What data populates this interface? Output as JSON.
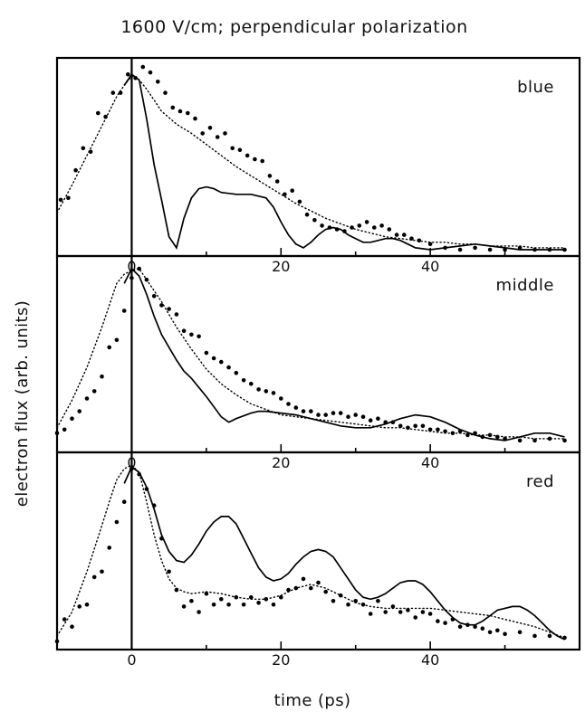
{
  "chart_data": {
    "type": "line",
    "title": "1600 V/cm; perpendicular polarization",
    "xlabel": "time (ps)",
    "ylabel": "electron flux (arb. units)",
    "xlim": [
      -10,
      60
    ],
    "x_ticks": [
      0,
      20,
      40
    ],
    "tick_labels": [
      "0",
      "20",
      "40"
    ],
    "grid": false,
    "legend": "none",
    "panels": [
      {
        "name": "blue",
        "ylim": [
          0,
          1.0
        ],
        "series": [
          {
            "style": "dots",
            "x": [
              -9.5,
              -8.5,
              -7.5,
              -6.5,
              -5.5,
              -4.5,
              -3.5,
              -2.5,
              -1.5,
              -0.5,
              0.5,
              1.5,
              2.5,
              3.5,
              4.5,
              5.5,
              6.5,
              7.5,
              8.5,
              9.5,
              10.5,
              11.5,
              12.5,
              13.5,
              14.5,
              15.5,
              16.5,
              17.5,
              18.5,
              19.5,
              20.5,
              21.5,
              22.5,
              23.5,
              24.5,
              25.5,
              26.5,
              27.5,
              28.5,
              29.5,
              30.5,
              31.5,
              32.5,
              33.5,
              34.5,
              35.5,
              36.5,
              37.5,
              38.5,
              40,
              42,
              44,
              46,
              48,
              50,
              52,
              54,
              56,
              58
            ],
            "y": [
              0.28,
              0.29,
              0.44,
              0.56,
              0.54,
              0.75,
              0.73,
              0.86,
              0.86,
              0.96,
              0.94,
              1.0,
              0.97,
              0.92,
              0.86,
              0.78,
              0.76,
              0.75,
              0.72,
              0.64,
              0.67,
              0.62,
              0.64,
              0.56,
              0.55,
              0.52,
              0.5,
              0.49,
              0.41,
              0.38,
              0.31,
              0.33,
              0.27,
              0.2,
              0.17,
              0.14,
              0.13,
              0.12,
              0.11,
              0.13,
              0.14,
              0.16,
              0.13,
              0.14,
              0.12,
              0.09,
              0.09,
              0.07,
              0.06,
              0.04,
              0.02,
              0.01,
              0.02,
              0.01,
              0.01,
              0.02,
              0.01,
              0.01,
              0.01
            ]
          },
          {
            "style": "solid",
            "x": [
              -1,
              0,
              1,
              2,
              3,
              4,
              5,
              6,
              7,
              8,
              9,
              10,
              11,
              12,
              14,
              16,
              18,
              19,
              20,
              21,
              22,
              23,
              24,
              25,
              26,
              27,
              28,
              29,
              30,
              31,
              32,
              33,
              34,
              35,
              36,
              37,
              38,
              40,
              42,
              44,
              46,
              48,
              50,
              52,
              54,
              56,
              58
            ],
            "y": [
              0.9,
              0.96,
              0.93,
              0.72,
              0.47,
              0.28,
              0.08,
              0.02,
              0.18,
              0.29,
              0.34,
              0.35,
              0.34,
              0.32,
              0.31,
              0.31,
              0.29,
              0.24,
              0.16,
              0.09,
              0.04,
              0.02,
              0.05,
              0.09,
              0.12,
              0.13,
              0.12,
              0.09,
              0.07,
              0.05,
              0.05,
              0.06,
              0.07,
              0.07,
              0.06,
              0.04,
              0.02,
              0.01,
              0.02,
              0.03,
              0.04,
              0.03,
              0.02,
              0.01,
              0.01,
              0.01,
              0.01
            ]
          },
          {
            "style": "dotted",
            "x": [
              -10,
              -8,
              -6,
              -4,
              -3,
              -2,
              -1,
              0,
              1,
              2,
              3,
              4,
              6,
              8,
              10,
              12,
              14,
              16,
              18,
              20,
              22,
              24,
              26,
              28,
              30,
              32,
              34,
              36,
              38,
              40,
              42,
              44,
              46,
              48,
              50,
              52,
              54,
              56,
              58
            ],
            "y": [
              0.21,
              0.36,
              0.52,
              0.68,
              0.76,
              0.84,
              0.9,
              0.95,
              0.93,
              0.88,
              0.82,
              0.76,
              0.69,
              0.64,
              0.58,
              0.52,
              0.46,
              0.41,
              0.36,
              0.31,
              0.26,
              0.22,
              0.18,
              0.15,
              0.12,
              0.1,
              0.08,
              0.07,
              0.06,
              0.05,
              0.05,
              0.04,
              0.04,
              0.03,
              0.03,
              0.03,
              0.02,
              0.02,
              0.02
            ]
          }
        ]
      },
      {
        "name": "middle",
        "ylim": [
          0,
          1.0
        ],
        "series": [
          {
            "style": "dots",
            "x": [
              -10,
              -9,
              -8,
              -7,
              -6,
              -5,
              -4,
              -3,
              -2,
              -1,
              0,
              1,
              2,
              3,
              4,
              5,
              6,
              7,
              8,
              9,
              10,
              11,
              12,
              13,
              14,
              15,
              16,
              17,
              18,
              19,
              20,
              21,
              22,
              23,
              24,
              25,
              26,
              27,
              28,
              29,
              30,
              31,
              32,
              33,
              34,
              35,
              36,
              37,
              38,
              39,
              40,
              41,
              42,
              43,
              44,
              45,
              46,
              47,
              48,
              49,
              50,
              52,
              54,
              56,
              58
            ],
            "y": [
              0.08,
              0.1,
              0.16,
              0.2,
              0.27,
              0.31,
              0.39,
              0.55,
              0.59,
              0.75,
              0.93,
              0.98,
              0.92,
              0.83,
              0.78,
              0.76,
              0.73,
              0.64,
              0.62,
              0.61,
              0.52,
              0.49,
              0.47,
              0.44,
              0.41,
              0.37,
              0.35,
              0.32,
              0.31,
              0.3,
              0.27,
              0.24,
              0.22,
              0.2,
              0.2,
              0.18,
              0.18,
              0.19,
              0.19,
              0.17,
              0.18,
              0.17,
              0.15,
              0.16,
              0.14,
              0.14,
              0.12,
              0.11,
              0.12,
              0.12,
              0.1,
              0.1,
              0.09,
              0.08,
              0.09,
              0.07,
              0.08,
              0.06,
              0.07,
              0.06,
              0.05,
              0.04,
              0.04,
              0.05,
              0.04
            ]
          },
          {
            "style": "solid",
            "x": [
              -1,
              0,
              1,
              2,
              3,
              4,
              5,
              6,
              7,
              8,
              10,
              12,
              13,
              14,
              16,
              17,
              18,
              20,
              22,
              24,
              26,
              28,
              30,
              32,
              34,
              36,
              38,
              40,
              42,
              44,
              46,
              48,
              50,
              52,
              54,
              56,
              58
            ],
            "y": [
              0.9,
              0.98,
              0.94,
              0.84,
              0.72,
              0.62,
              0.55,
              0.48,
              0.42,
              0.38,
              0.28,
              0.17,
              0.14,
              0.16,
              0.19,
              0.2,
              0.2,
              0.19,
              0.18,
              0.16,
              0.14,
              0.12,
              0.11,
              0.11,
              0.13,
              0.16,
              0.18,
              0.17,
              0.14,
              0.1,
              0.07,
              0.05,
              0.04,
              0.06,
              0.08,
              0.08,
              0.06
            ]
          },
          {
            "style": "dotted",
            "x": [
              -10,
              -8,
              -6,
              -4,
              -3,
              -2,
              -1,
              0,
              1,
              2,
              4,
              6,
              8,
              10,
              12,
              14,
              16,
              18,
              20,
              22,
              24,
              26,
              28,
              30,
              32,
              34,
              36,
              38,
              40,
              42,
              44,
              46,
              48,
              50,
              52,
              54,
              56,
              58
            ],
            "y": [
              0.11,
              0.26,
              0.44,
              0.66,
              0.78,
              0.9,
              0.95,
              0.97,
              0.98,
              0.92,
              0.8,
              0.66,
              0.54,
              0.43,
              0.35,
              0.29,
              0.24,
              0.21,
              0.18,
              0.17,
              0.16,
              0.15,
              0.14,
              0.13,
              0.12,
              0.11,
              0.11,
              0.1,
              0.09,
              0.08,
              0.08,
              0.07,
              0.07,
              0.06,
              0.06,
              0.05,
              0.05,
              0.05
            ]
          }
        ]
      },
      {
        "name": "red",
        "ylim": [
          0,
          1.0
        ],
        "series": [
          {
            "style": "dots",
            "x": [
              -10,
              -9,
              -8,
              -7,
              -6,
              -5,
              -4,
              -3,
              -2,
              -1,
              0,
              1,
              2,
              3,
              4,
              5,
              6,
              7,
              8,
              9,
              10,
              11,
              12,
              13,
              14,
              15,
              16,
              17,
              18,
              19,
              20,
              21,
              22,
              23,
              24,
              25,
              26,
              27,
              28,
              29,
              30,
              31,
              32,
              33,
              34,
              35,
              36,
              37,
              38,
              39,
              40,
              41,
              42,
              43,
              44,
              45,
              46,
              47,
              48,
              49,
              50,
              52,
              54,
              56,
              58
            ],
            "y": [
              0.02,
              0.14,
              0.1,
              0.21,
              0.22,
              0.37,
              0.4,
              0.53,
              0.67,
              0.78,
              0.96,
              0.93,
              0.85,
              0.76,
              0.58,
              0.4,
              0.3,
              0.21,
              0.24,
              0.18,
              0.28,
              0.22,
              0.25,
              0.22,
              0.26,
              0.22,
              0.26,
              0.23,
              0.25,
              0.22,
              0.26,
              0.3,
              0.31,
              0.36,
              0.31,
              0.34,
              0.29,
              0.24,
              0.27,
              0.22,
              0.24,
              0.22,
              0.17,
              0.24,
              0.18,
              0.21,
              0.18,
              0.19,
              0.15,
              0.18,
              0.17,
              0.13,
              0.12,
              0.14,
              0.1,
              0.11,
              0.1,
              0.09,
              0.07,
              0.08,
              0.06,
              0.07,
              0.05,
              0.05,
              0.04
            ]
          },
          {
            "style": "solid",
            "x": [
              -1,
              0,
              1,
              2,
              3,
              4,
              5,
              6,
              7,
              8,
              9,
              10,
              11,
              12,
              13,
              14,
              15,
              16,
              17,
              18,
              19,
              20,
              21,
              22,
              23,
              24,
              25,
              26,
              27,
              28,
              29,
              30,
              31,
              32,
              33,
              34,
              35,
              36,
              37,
              38,
              39,
              40,
              41,
              42,
              43,
              44,
              45,
              46,
              47,
              48,
              49,
              50,
              51,
              52,
              53,
              54,
              55,
              56,
              57,
              58
            ],
            "y": [
              0.88,
              0.97,
              0.94,
              0.86,
              0.74,
              0.6,
              0.51,
              0.46,
              0.45,
              0.49,
              0.55,
              0.62,
              0.67,
              0.7,
              0.7,
              0.66,
              0.58,
              0.5,
              0.42,
              0.37,
              0.35,
              0.36,
              0.39,
              0.44,
              0.48,
              0.51,
              0.52,
              0.51,
              0.48,
              0.42,
              0.36,
              0.3,
              0.26,
              0.25,
              0.26,
              0.28,
              0.31,
              0.34,
              0.35,
              0.35,
              0.33,
              0.29,
              0.24,
              0.19,
              0.15,
              0.12,
              0.11,
              0.11,
              0.13,
              0.16,
              0.19,
              0.2,
              0.21,
              0.21,
              0.19,
              0.16,
              0.12,
              0.08,
              0.05,
              0.03
            ]
          },
          {
            "style": "dotted",
            "x": [
              -10,
              -8,
              -6,
              -4,
              -3,
              -2,
              -1,
              0,
              1,
              2,
              3,
              4,
              5,
              6,
              7,
              8,
              10,
              12,
              14,
              16,
              18,
              20,
              22,
              24,
              26,
              28,
              30,
              32,
              34,
              36,
              38,
              40,
              42,
              44,
              46,
              48,
              50,
              52,
              54,
              56,
              58
            ],
            "y": [
              0.05,
              0.18,
              0.4,
              0.65,
              0.78,
              0.9,
              0.96,
              0.98,
              0.94,
              0.78,
              0.6,
              0.46,
              0.36,
              0.31,
              0.29,
              0.28,
              0.29,
              0.28,
              0.26,
              0.25,
              0.25,
              0.27,
              0.31,
              0.33,
              0.31,
              0.27,
              0.23,
              0.21,
              0.2,
              0.2,
              0.2,
              0.2,
              0.19,
              0.18,
              0.17,
              0.16,
              0.14,
              0.12,
              0.1,
              0.07,
              0.04
            ]
          }
        ]
      }
    ]
  }
}
